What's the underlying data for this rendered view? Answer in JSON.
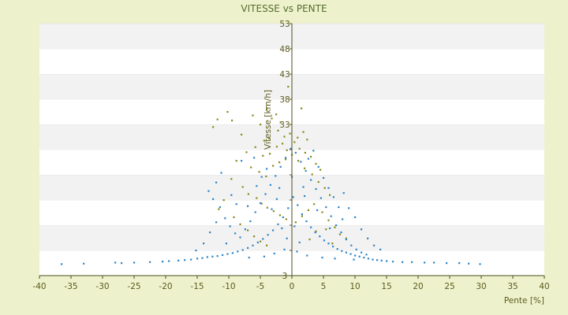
{
  "chart_data": {
    "type": "scatter",
    "title": "VITESSE vs PENTE",
    "xlabel": "Pente [%]",
    "ylabel": "Vitesse [km/h]",
    "xlim": [
      -40,
      40
    ],
    "ylim": [
      3,
      53
    ],
    "x_ticks": [
      -40,
      -35,
      -30,
      -25,
      -20,
      -15,
      -10,
      -5,
      0,
      5,
      10,
      15,
      20,
      25,
      30,
      35,
      40
    ],
    "y_ticks": [
      3,
      8,
      13,
      18,
      23,
      28,
      33,
      38,
      43,
      48,
      53
    ],
    "y_tick_labels_shown": [
      "3",
      "33",
      "38",
      "43",
      "48",
      "53"
    ],
    "grid": "horizontal-bands",
    "legend": "none",
    "colors": {
      "background": "#eef2cc",
      "plot_band_light": "#ffffff",
      "plot_band_dark": "#f2f2f2",
      "series_blue": "#2e86c8",
      "series_olive": "#8a8a1a",
      "axis": "#4d4d20"
    },
    "series": [
      {
        "color": "#8a8a1a",
        "points": [
          [
            -10.2,
            35.5
          ],
          [
            -11.8,
            34.0
          ],
          [
            -12.5,
            32.5
          ],
          [
            -9.5,
            33.8
          ],
          [
            -8.0,
            31.0
          ],
          [
            -6.2,
            34.8
          ],
          [
            -5.0,
            33.0
          ],
          [
            -4.0,
            36.0
          ],
          [
            -3.2,
            34.2
          ],
          [
            -2.5,
            35.0
          ],
          [
            -1.8,
            33.4
          ],
          [
            1.5,
            36.2
          ],
          [
            -0.6,
            40.5
          ],
          [
            -7.2,
            27.5
          ],
          [
            -5.8,
            28.5
          ],
          [
            -4.6,
            26.8
          ],
          [
            -3.5,
            27.2
          ],
          [
            -2.4,
            28.6
          ],
          [
            -1.5,
            29.2
          ],
          [
            -0.8,
            27.9
          ],
          [
            0.4,
            29.5
          ],
          [
            1.2,
            28.2
          ],
          [
            2.1,
            27.4
          ],
          [
            3.0,
            26.6
          ],
          [
            3.8,
            25.2
          ],
          [
            4.5,
            24.0
          ],
          [
            -6.5,
            24.5
          ],
          [
            -5.2,
            23.6
          ],
          [
            -4.1,
            22.7
          ],
          [
            -3.0,
            24.8
          ],
          [
            -2.0,
            25.5
          ],
          [
            -1.0,
            26.1
          ],
          [
            0.0,
            27.0
          ],
          [
            1.0,
            25.8
          ],
          [
            2.0,
            24.3
          ],
          [
            3.2,
            23.1
          ],
          [
            4.2,
            21.6
          ],
          [
            5.2,
            20.4
          ],
          [
            6.0,
            19.0
          ],
          [
            -8.8,
            25.8
          ],
          [
            -9.6,
            22.2
          ],
          [
            -7.8,
            20.6
          ],
          [
            -6.9,
            19.2
          ],
          [
            -5.6,
            18.4
          ],
          [
            -4.8,
            17.3
          ],
          [
            -3.9,
            16.5
          ],
          [
            -2.9,
            15.8
          ],
          [
            -1.9,
            15.0
          ],
          [
            -0.9,
            14.2
          ],
          [
            0.6,
            13.6
          ],
          [
            1.6,
            14.8
          ],
          [
            2.6,
            16.0
          ],
          [
            3.5,
            17.2
          ],
          [
            4.8,
            15.6
          ],
          [
            5.8,
            14.0
          ],
          [
            6.8,
            12.6
          ],
          [
            7.6,
            11.2
          ],
          [
            8.6,
            10.4
          ],
          [
            -10.8,
            18.0
          ],
          [
            -11.6,
            16.2
          ],
          [
            -9.2,
            14.6
          ],
          [
            -8.2,
            13.2
          ],
          [
            -7.0,
            12.0
          ],
          [
            -6.0,
            10.8
          ],
          [
            -5.0,
            9.8
          ],
          [
            -4.0,
            9.0
          ],
          [
            2.8,
            10.2
          ],
          [
            3.8,
            11.8
          ],
          [
            5.4,
            12.2
          ],
          [
            6.4,
            9.4
          ],
          [
            0.9,
            30.4
          ],
          [
            -0.3,
            31.2
          ],
          [
            -1.2,
            30.6
          ],
          [
            -2.2,
            31.8
          ],
          [
            2.4,
            30.0
          ],
          [
            -3.6,
            30.2
          ],
          [
            -4.4,
            29.8
          ],
          [
            1.8,
            31.5
          ]
        ]
      },
      {
        "color": "#2e86c8",
        "points": [
          [
            -36.5,
            5.3
          ],
          [
            -33.0,
            5.4
          ],
          [
            -28.0,
            5.6
          ],
          [
            -27.0,
            5.5
          ],
          [
            -25.0,
            5.6
          ],
          [
            -22.5,
            5.7
          ],
          [
            -20.5,
            5.8
          ],
          [
            -19.5,
            5.9
          ],
          [
            -18.0,
            6.0
          ],
          [
            -17.0,
            6.1
          ],
          [
            -16.0,
            6.2
          ],
          [
            -15.0,
            6.4
          ],
          [
            -14.2,
            6.5
          ],
          [
            -13.4,
            6.7
          ],
          [
            -12.6,
            6.8
          ],
          [
            -11.8,
            6.9
          ],
          [
            -11.0,
            7.1
          ],
          [
            -10.2,
            7.3
          ],
          [
            -9.4,
            7.5
          ],
          [
            -8.6,
            7.8
          ],
          [
            -7.8,
            8.1
          ],
          [
            -7.0,
            8.5
          ],
          [
            -6.2,
            9.0
          ],
          [
            -5.4,
            9.6
          ],
          [
            -4.6,
            10.3
          ],
          [
            -3.8,
            11.1
          ],
          [
            -3.0,
            12.0
          ],
          [
            -2.2,
            13.2
          ],
          [
            -1.4,
            14.6
          ],
          [
            -0.6,
            16.4
          ],
          [
            0.2,
            18.6
          ],
          [
            0.9,
            17.0
          ],
          [
            1.6,
            15.2
          ],
          [
            2.3,
            13.8
          ],
          [
            3.0,
            12.6
          ],
          [
            3.7,
            11.6
          ],
          [
            4.4,
            10.8
          ],
          [
            5.1,
            10.0
          ],
          [
            5.8,
            9.4
          ],
          [
            6.5,
            8.8
          ],
          [
            7.2,
            8.3
          ],
          [
            7.9,
            7.9
          ],
          [
            8.6,
            7.6
          ],
          [
            9.3,
            7.3
          ],
          [
            10.0,
            7.0
          ],
          [
            10.7,
            6.8
          ],
          [
            11.4,
            6.6
          ],
          [
            12.1,
            6.4
          ],
          [
            12.8,
            6.2
          ],
          [
            13.5,
            6.1
          ],
          [
            14.2,
            6.0
          ],
          [
            15.0,
            5.9
          ],
          [
            16.0,
            5.8
          ],
          [
            17.5,
            5.7
          ],
          [
            19.0,
            5.7
          ],
          [
            21.0,
            5.6
          ],
          [
            22.5,
            5.6
          ],
          [
            24.5,
            5.5
          ],
          [
            26.5,
            5.5
          ],
          [
            28.0,
            5.4
          ],
          [
            29.8,
            5.3
          ],
          [
            -12.0,
            21.5
          ],
          [
            -13.2,
            19.8
          ],
          [
            -12.5,
            18.2
          ],
          [
            -11.4,
            16.6
          ],
          [
            -10.6,
            14.4
          ],
          [
            -9.8,
            12.8
          ],
          [
            -9.0,
            11.4
          ],
          [
            -8.2,
            10.6
          ],
          [
            -7.4,
            12.2
          ],
          [
            -6.6,
            13.8
          ],
          [
            -5.8,
            15.6
          ],
          [
            -5.0,
            17.4
          ],
          [
            -4.2,
            19.2
          ],
          [
            -3.4,
            21.0
          ],
          [
            -2.6,
            22.8
          ],
          [
            -1.8,
            24.6
          ],
          [
            -1.0,
            26.4
          ],
          [
            -0.2,
            28.2
          ],
          [
            0.6,
            27.4
          ],
          [
            1.4,
            25.6
          ],
          [
            2.2,
            23.8
          ],
          [
            3.0,
            22.0
          ],
          [
            3.8,
            20.2
          ],
          [
            4.6,
            18.4
          ],
          [
            5.4,
            16.6
          ],
          [
            6.2,
            14.8
          ],
          [
            7.0,
            13.0
          ],
          [
            7.8,
            11.6
          ],
          [
            8.6,
            10.2
          ],
          [
            9.4,
            9.0
          ],
          [
            10.2,
            8.2
          ],
          [
            11.0,
            7.6
          ],
          [
            11.8,
            7.2
          ],
          [
            -11.2,
            23.4
          ],
          [
            -8.0,
            25.8
          ],
          [
            -6.0,
            26.4
          ],
          [
            -4.0,
            24.2
          ],
          [
            -2.0,
            20.4
          ],
          [
            0.0,
            22.6
          ],
          [
            2.0,
            18.8
          ],
          [
            4.0,
            16.0
          ],
          [
            6.0,
            12.4
          ],
          [
            8.0,
            14.2
          ],
          [
            9.0,
            16.4
          ],
          [
            10.0,
            14.6
          ],
          [
            11.0,
            12.2
          ],
          [
            12.0,
            10.4
          ],
          [
            13.0,
            9.0
          ],
          [
            14.0,
            8.2
          ],
          [
            -14.0,
            9.4
          ],
          [
            -15.2,
            8.0
          ],
          [
            -13.0,
            11.6
          ],
          [
            -12.0,
            13.6
          ],
          [
            -7.0,
            16.8
          ],
          [
            -5.6,
            20.8
          ],
          [
            -4.8,
            22.6
          ],
          [
            -3.2,
            16.2
          ],
          [
            -2.4,
            18.2
          ],
          [
            -1.6,
            12.4
          ],
          [
            -0.8,
            10.4
          ],
          [
            0.4,
            12.8
          ],
          [
            1.2,
            9.6
          ],
          [
            1.8,
            20.6
          ],
          [
            2.6,
            26.2
          ],
          [
            3.4,
            27.8
          ],
          [
            4.2,
            24.6
          ],
          [
            5.0,
            22.4
          ],
          [
            5.8,
            20.4
          ],
          [
            6.6,
            18.6
          ],
          [
            7.4,
            16.6
          ],
          [
            8.2,
            19.4
          ],
          [
            -9.6,
            19.0
          ],
          [
            -8.8,
            17.2
          ],
          [
            -10.4,
            9.4
          ],
          [
            -6.8,
            6.6
          ],
          [
            -4.4,
            6.8
          ],
          [
            -2.8,
            7.4
          ],
          [
            -1.2,
            8.2
          ],
          [
            0.8,
            7.8
          ],
          [
            2.4,
            7.0
          ],
          [
            4.8,
            6.6
          ],
          [
            6.8,
            6.4
          ],
          [
            9.8,
            6.2
          ]
        ]
      }
    ]
  }
}
